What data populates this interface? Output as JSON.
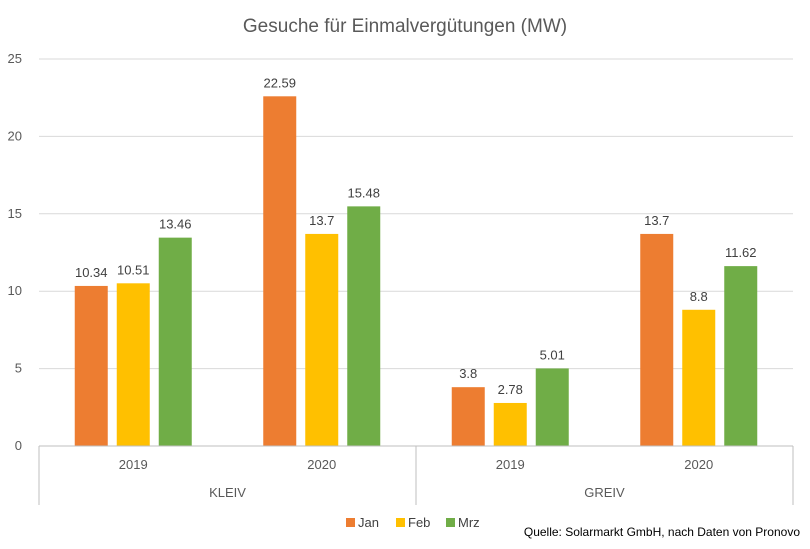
{
  "chart_data": {
    "type": "bar",
    "title": "Gesuche für Einmalvergütungen (MW)",
    "ylim": [
      0,
      25
    ],
    "yticks": [
      0,
      5,
      10,
      15,
      20,
      25
    ],
    "grid": true,
    "legend_position": "bottom",
    "groups": [
      {
        "label": "KLEIV",
        "categories": [
          "2019",
          "2020"
        ]
      },
      {
        "label": "GREIV",
        "categories": [
          "2019",
          "2020"
        ]
      }
    ],
    "series": [
      {
        "name": "Jan",
        "color": "#ED7D31",
        "values": [
          10.34,
          22.59,
          3.8,
          13.7
        ]
      },
      {
        "name": "Feb",
        "color": "#FFC000",
        "values": [
          10.51,
          13.7,
          2.78,
          8.8
        ]
      },
      {
        "name": "Mrz",
        "color": "#70AD47",
        "values": [
          13.46,
          15.48,
          5.01,
          11.62
        ]
      }
    ],
    "data_labels": [
      [
        "10.34",
        "22.59",
        "3.8",
        "13.7"
      ],
      [
        "10.51",
        "13.7",
        "2.78",
        "8.8"
      ],
      [
        "13.46",
        "15.48",
        "5.01",
        "11.62"
      ]
    ]
  },
  "source": "Quelle: Solarmarkt GmbH, nach Daten von Pronovo"
}
